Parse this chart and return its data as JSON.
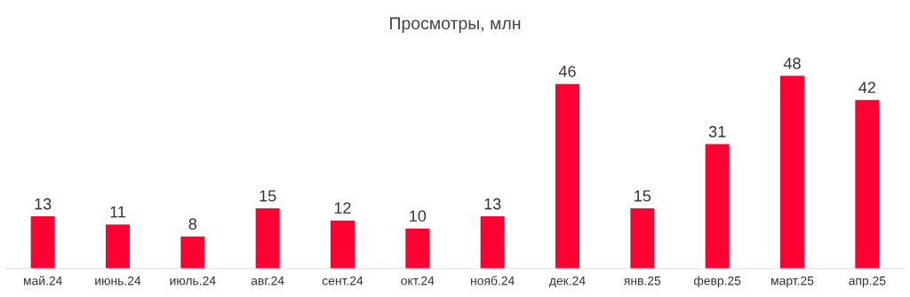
{
  "chart_data": {
    "type": "bar",
    "title": "Просмотры, млн",
    "categories": [
      "май.24",
      "июнь.24",
      "июль.24",
      "авг.24",
      "сент.24",
      "окт.24",
      "нояб.24",
      "дек.24",
      "янв.25",
      "февр.25",
      "март.25",
      "апр.25"
    ],
    "values": [
      13,
      11,
      8,
      15,
      12,
      10,
      13,
      46,
      15,
      31,
      48,
      42
    ],
    "color": "#ff0033",
    "data_labels": true,
    "grid": false,
    "legend": false,
    "tick_labels": "x"
  }
}
